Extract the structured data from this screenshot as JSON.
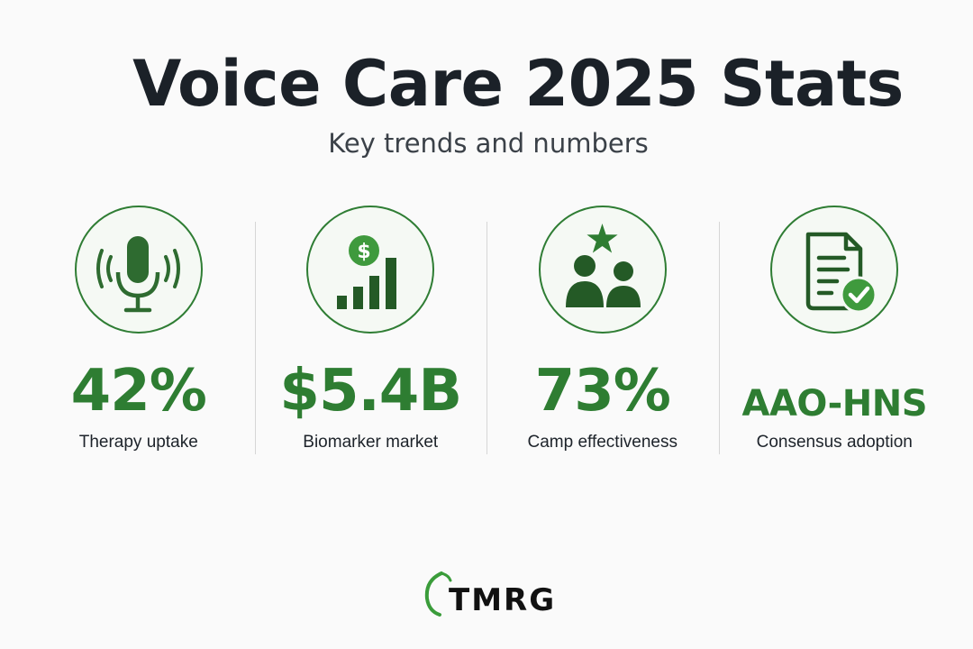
{
  "header": {
    "title": "Voice Care 2025 Stats",
    "subtitle": "Key trends and numbers"
  },
  "stats": [
    {
      "icon": "microphone-icon",
      "value": "42%",
      "label": "Therapy uptake"
    },
    {
      "icon": "dollar-bar-chart-icon",
      "value": "$5.4B",
      "label": "Biomarker market"
    },
    {
      "icon": "people-star-icon",
      "value": "73%",
      "label": "Camp effectiveness"
    },
    {
      "icon": "document-check-icon",
      "value": "AAO-HNS",
      "label": "Consensus adoption"
    }
  ],
  "brand": {
    "name": "TMRG"
  },
  "colors": {
    "accent": "#2e7d32",
    "dark": "#1b2128",
    "background": "#fafafa"
  }
}
